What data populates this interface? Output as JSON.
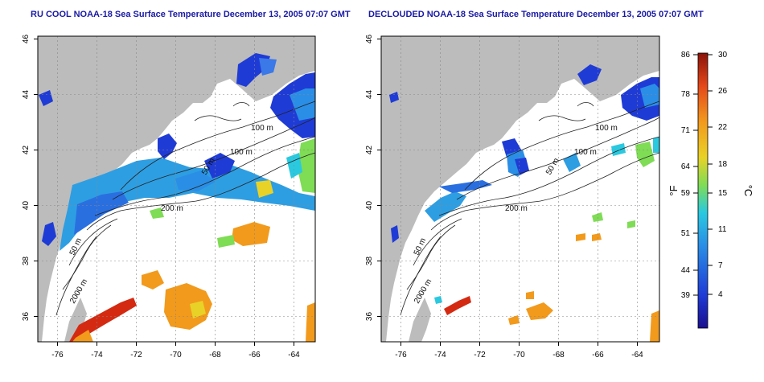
{
  "maps": [
    {
      "id": "left",
      "title": "RU COOL NOAA-18 Sea Surface Temperature December 13, 2005 07:07 GMT",
      "x_ticks": [
        "-76",
        "-74",
        "-72",
        "-70",
        "-68",
        "-66",
        "-64"
      ],
      "y_ticks": [
        "46",
        "44",
        "42",
        "40",
        "38",
        "36"
      ],
      "depth_labels": [
        "100 m",
        "100 m",
        "50 m",
        "200 m",
        "50 m",
        "2000 m"
      ]
    },
    {
      "id": "right",
      "title": "DECLOUDED NOAA-18 Sea Surface Temperature December 13, 2005 07:07 GMT",
      "x_ticks": [
        "-76",
        "-74",
        "-72",
        "-70",
        "-68",
        "-66",
        "-64"
      ],
      "y_ticks": [
        "46",
        "44",
        "42",
        "40",
        "38",
        "36"
      ],
      "depth_labels": [
        "100 m",
        "100 m",
        "50 m",
        "200 m",
        "50 m",
        "2000 m"
      ]
    }
  ],
  "colorbar": {
    "fahrenheit_ticks": [
      "86",
      "78",
      "71",
      "64",
      "59",
      "51",
      "44",
      "39"
    ],
    "celsius_ticks": [
      "30",
      "26",
      "22",
      "18",
      "15",
      "11",
      "7",
      "4"
    ],
    "fahrenheit_unit": "°F",
    "celsius_unit": "°C"
  },
  "colors": {
    "land": "#bcbcbc",
    "ocean": "#ffffff",
    "title": "#1a1aa6",
    "cold": "#1f3bd6",
    "cyan": "#29c9e0",
    "green": "#7fdc55",
    "yellow": "#e8d227",
    "orange": "#f29a1c",
    "red": "#d42a12"
  }
}
